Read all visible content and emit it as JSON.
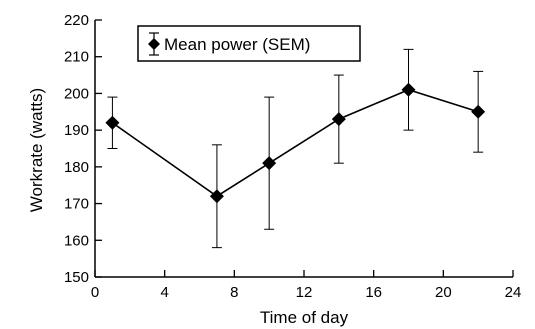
{
  "chart_data": {
    "type": "line",
    "title": "",
    "xlabel": "Time of day",
    "ylabel": "Workrate (watts)",
    "xlim": [
      0,
      24
    ],
    "ylim": [
      150,
      220
    ],
    "x_ticks": [
      0,
      4,
      8,
      12,
      16,
      20,
      24
    ],
    "y_ticks": [
      150,
      160,
      170,
      180,
      190,
      200,
      210,
      220
    ],
    "grid": false,
    "legend": {
      "position": "top-left",
      "boxed": true
    },
    "series": [
      {
        "name": "Mean power (SEM)",
        "color": "#000000",
        "marker": "diamond",
        "x": [
          1,
          7,
          10,
          14,
          18,
          22
        ],
        "y": [
          192,
          172,
          181,
          193,
          201,
          195
        ],
        "error_low": [
          185,
          158,
          163,
          181,
          190,
          184
        ],
        "error_high": [
          199,
          186,
          199,
          205,
          212,
          206
        ]
      }
    ]
  }
}
